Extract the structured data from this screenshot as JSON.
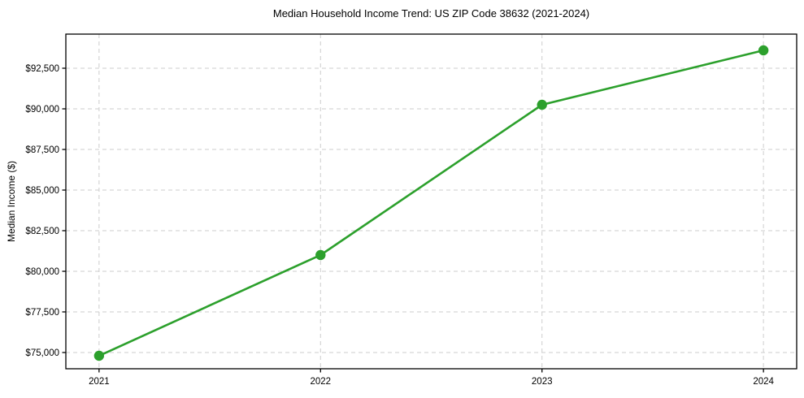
{
  "chart_data": {
    "type": "line",
    "title": "Median Household Income Trend: US ZIP Code 38632 (2021-2024)",
    "ylabel": "Median Income ($)",
    "xlabel": "",
    "x": [
      2021,
      2022,
      2023,
      2024
    ],
    "values": [
      74800,
      81000,
      90250,
      93600
    ],
    "xtick_labels": [
      "2021",
      "2022",
      "2023",
      "2024"
    ],
    "yticks": [
      75000,
      77500,
      80000,
      82500,
      85000,
      87500,
      90000,
      92500
    ],
    "ytick_labels": [
      "$75,000",
      "$77,500",
      "$80,000",
      "$82,500",
      "$85,000",
      "$87,500",
      "$90,000",
      "$92,500"
    ],
    "xlim": [
      2020.85,
      2024.15
    ],
    "ylim": [
      74000,
      94600
    ],
    "grid": true,
    "legend": false,
    "line_color": "#2ca02c",
    "grid_color": "#cdcdcd",
    "axis_color": "#000000",
    "marker": "circle"
  }
}
